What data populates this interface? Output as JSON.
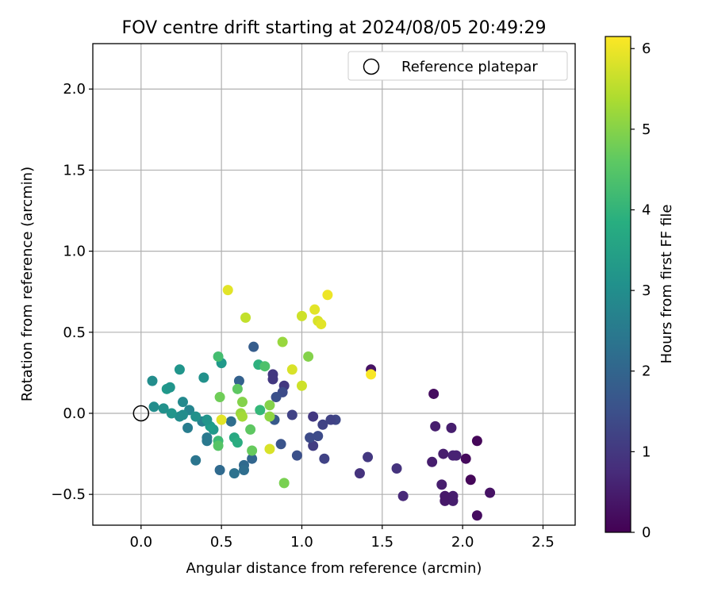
{
  "chart_data": {
    "type": "scatter",
    "title": "FOV centre drift starting at 2024/08/05 20:49:29",
    "xlabel": "Angular distance from reference (arcmin)",
    "ylabel": "Rotation from reference (arcmin)",
    "xlim": [
      -0.3,
      2.7
    ],
    "ylim": [
      -0.69,
      2.28
    ],
    "xticks": [
      "0.0",
      "0.5",
      "1.0",
      "1.5",
      "2.0",
      "2.5"
    ],
    "xtick_values": [
      0,
      0.5,
      1.0,
      1.5,
      2.0,
      2.5
    ],
    "yticks": [
      "−0.5",
      "0.0",
      "0.5",
      "1.0",
      "1.5",
      "2.0"
    ],
    "ytick_values": [
      -0.5,
      0,
      0.5,
      1.0,
      1.5,
      2.0
    ],
    "grid": true,
    "legend": {
      "position": "top-right",
      "entries": [
        {
          "label": "Reference platepar",
          "marker": "open-circle",
          "x": 0.0,
          "y": 0.0
        }
      ]
    },
    "colorbar": {
      "label": "Hours from first FF file",
      "colormap": "viridis",
      "range": [
        0,
        6.15
      ],
      "ticks": [
        "0",
        "1",
        "2",
        "3",
        "4",
        "5",
        "6"
      ],
      "tick_values": [
        0,
        1,
        2,
        3,
        4,
        5,
        6
      ]
    },
    "points": [
      {
        "x": 2.09,
        "y": -0.63,
        "c": 0.2
      },
      {
        "x": 2.17,
        "y": -0.49,
        "c": 0.3
      },
      {
        "x": 2.05,
        "y": -0.41,
        "c": 0.1
      },
      {
        "x": 2.09,
        "y": -0.17,
        "c": 0.1
      },
      {
        "x": 2.02,
        "y": -0.28,
        "c": 0.15
      },
      {
        "x": 1.96,
        "y": -0.26,
        "c": 0.6
      },
      {
        "x": 1.94,
        "y": -0.26,
        "c": 0.6
      },
      {
        "x": 1.94,
        "y": -0.54,
        "c": 0.5
      },
      {
        "x": 1.94,
        "y": -0.51,
        "c": 0.5
      },
      {
        "x": 1.89,
        "y": -0.54,
        "c": 0.4
      },
      {
        "x": 1.89,
        "y": -0.51,
        "c": 0.4
      },
      {
        "x": 1.87,
        "y": -0.44,
        "c": 0.5
      },
      {
        "x": 1.93,
        "y": -0.09,
        "c": 0.5
      },
      {
        "x": 1.88,
        "y": -0.25,
        "c": 0.5
      },
      {
        "x": 1.81,
        "y": -0.3,
        "c": 0.5
      },
      {
        "x": 1.83,
        "y": -0.08,
        "c": 0.5
      },
      {
        "x": 1.82,
        "y": 0.12,
        "c": 0.2
      },
      {
        "x": 1.63,
        "y": -0.51,
        "c": 0.7
      },
      {
        "x": 1.59,
        "y": -0.34,
        "c": 0.9
      },
      {
        "x": 1.43,
        "y": 0.27,
        "c": 0.3
      },
      {
        "x": 1.41,
        "y": -0.27,
        "c": 1.0
      },
      {
        "x": 1.36,
        "y": -0.37,
        "c": 0.9
      },
      {
        "x": 1.21,
        "y": -0.04,
        "c": 1.3
      },
      {
        "x": 1.18,
        "y": -0.04,
        "c": 1.2
      },
      {
        "x": 1.13,
        "y": -0.07,
        "c": 1.2
      },
      {
        "x": 1.14,
        "y": -0.28,
        "c": 1.2
      },
      {
        "x": 1.1,
        "y": -0.14,
        "c": 1.4
      },
      {
        "x": 1.07,
        "y": -0.2,
        "c": 1.1
      },
      {
        "x": 1.07,
        "y": -0.02,
        "c": 1.0
      },
      {
        "x": 1.05,
        "y": -0.15,
        "c": 1.4
      },
      {
        "x": 0.97,
        "y": -0.26,
        "c": 1.5
      },
      {
        "x": 0.94,
        "y": -0.01,
        "c": 1.2
      },
      {
        "x": 0.89,
        "y": 0.17,
        "c": 1.0
      },
      {
        "x": 0.88,
        "y": 0.13,
        "c": 1.4
      },
      {
        "x": 0.84,
        "y": 0.1,
        "c": 1.5
      },
      {
        "x": 0.82,
        "y": 0.24,
        "c": 1.0
      },
      {
        "x": 0.82,
        "y": 0.21,
        "c": 1.0
      },
      {
        "x": 0.83,
        "y": -0.04,
        "c": 1.7
      },
      {
        "x": 0.87,
        "y": -0.19,
        "c": 1.6
      },
      {
        "x": 0.7,
        "y": 0.41,
        "c": 1.8
      },
      {
        "x": 0.69,
        "y": -0.28,
        "c": 2.0
      },
      {
        "x": 0.64,
        "y": -0.32,
        "c": 2.1
      },
      {
        "x": 0.64,
        "y": -0.35,
        "c": 2.2
      },
      {
        "x": 0.58,
        "y": -0.37,
        "c": 2.3
      },
      {
        "x": 0.49,
        "y": -0.35,
        "c": 2.1
      },
      {
        "x": 0.61,
        "y": 0.2,
        "c": 1.9
      },
      {
        "x": 0.56,
        "y": -0.05,
        "c": 2.2
      },
      {
        "x": 0.5,
        "y": 0.31,
        "c": 3.3
      },
      {
        "x": 0.34,
        "y": -0.29,
        "c": 2.4
      },
      {
        "x": 0.41,
        "y": -0.17,
        "c": 2.5
      },
      {
        "x": 0.41,
        "y": -0.15,
        "c": 2.5
      },
      {
        "x": 0.38,
        "y": -0.05,
        "c": 2.7
      },
      {
        "x": 0.29,
        "y": -0.09,
        "c": 2.6
      },
      {
        "x": 0.3,
        "y": 0.02,
        "c": 2.8
      },
      {
        "x": 0.26,
        "y": 0.07,
        "c": 2.9
      },
      {
        "x": 0.24,
        "y": 0.27,
        "c": 3.2
      },
      {
        "x": 0.39,
        "y": 0.22,
        "c": 3.1
      },
      {
        "x": 0.45,
        "y": -0.1,
        "c": 3.3
      },
      {
        "x": 0.43,
        "y": -0.08,
        "c": 3.4
      },
      {
        "x": 0.41,
        "y": -0.04,
        "c": 3.2
      },
      {
        "x": 0.34,
        "y": -0.02,
        "c": 3.1
      },
      {
        "x": 0.26,
        "y": -0.01,
        "c": 3.0
      },
      {
        "x": 0.24,
        "y": -0.02,
        "c": 3.0
      },
      {
        "x": 0.19,
        "y": 0.0,
        "c": 3.2
      },
      {
        "x": 0.14,
        "y": 0.03,
        "c": 3.1
      },
      {
        "x": 0.08,
        "y": 0.04,
        "c": 3.0
      },
      {
        "x": 0.07,
        "y": 0.2,
        "c": 3.0
      },
      {
        "x": 0.16,
        "y": 0.15,
        "c": 3.3
      },
      {
        "x": 0.18,
        "y": 0.16,
        "c": 3.2
      },
      {
        "x": 0.58,
        "y": -0.15,
        "c": 3.7
      },
      {
        "x": 0.6,
        "y": -0.18,
        "c": 3.8
      },
      {
        "x": 0.48,
        "y": -0.17,
        "c": 4.2
      },
      {
        "x": 0.48,
        "y": -0.2,
        "c": 4.5
      },
      {
        "x": 0.68,
        "y": -0.1,
        "c": 4.6
      },
      {
        "x": 0.69,
        "y": -0.23,
        "c": 4.7
      },
      {
        "x": 0.73,
        "y": 0.3,
        "c": 3.9
      },
      {
        "x": 0.74,
        "y": 0.02,
        "c": 4.1
      },
      {
        "x": 0.77,
        "y": 0.29,
        "c": 4.4
      },
      {
        "x": 0.48,
        "y": 0.35,
        "c": 4.3
      },
      {
        "x": 0.6,
        "y": 0.15,
        "c": 4.6
      },
      {
        "x": 0.49,
        "y": 0.1,
        "c": 4.8
      },
      {
        "x": 0.63,
        "y": 0.07,
        "c": 5.0
      },
      {
        "x": 0.62,
        "y": 0.0,
        "c": 5.2
      },
      {
        "x": 0.63,
        "y": -0.02,
        "c": 5.3
      },
      {
        "x": 0.8,
        "y": 0.05,
        "c": 5.0
      },
      {
        "x": 0.8,
        "y": -0.02,
        "c": 5.1
      },
      {
        "x": 0.89,
        "y": -0.43,
        "c": 4.9
      },
      {
        "x": 0.88,
        "y": 0.44,
        "c": 5.2
      },
      {
        "x": 1.04,
        "y": 0.35,
        "c": 5.0
      },
      {
        "x": 0.65,
        "y": 0.59,
        "c": 5.6
      },
      {
        "x": 0.5,
        "y": -0.04,
        "c": 5.9
      },
      {
        "x": 0.54,
        "y": 0.76,
        "c": 5.9
      },
      {
        "x": 0.8,
        "y": -0.22,
        "c": 5.8
      },
      {
        "x": 0.94,
        "y": 0.27,
        "c": 5.8
      },
      {
        "x": 1.0,
        "y": 0.17,
        "c": 5.7
      },
      {
        "x": 1.0,
        "y": 0.6,
        "c": 5.7
      },
      {
        "x": 1.08,
        "y": 0.64,
        "c": 5.9
      },
      {
        "x": 1.1,
        "y": 0.57,
        "c": 5.8
      },
      {
        "x": 1.12,
        "y": 0.55,
        "c": 5.9
      },
      {
        "x": 1.16,
        "y": 0.73,
        "c": 6.0
      },
      {
        "x": 1.43,
        "y": 0.24,
        "c": 6.1
      }
    ]
  }
}
